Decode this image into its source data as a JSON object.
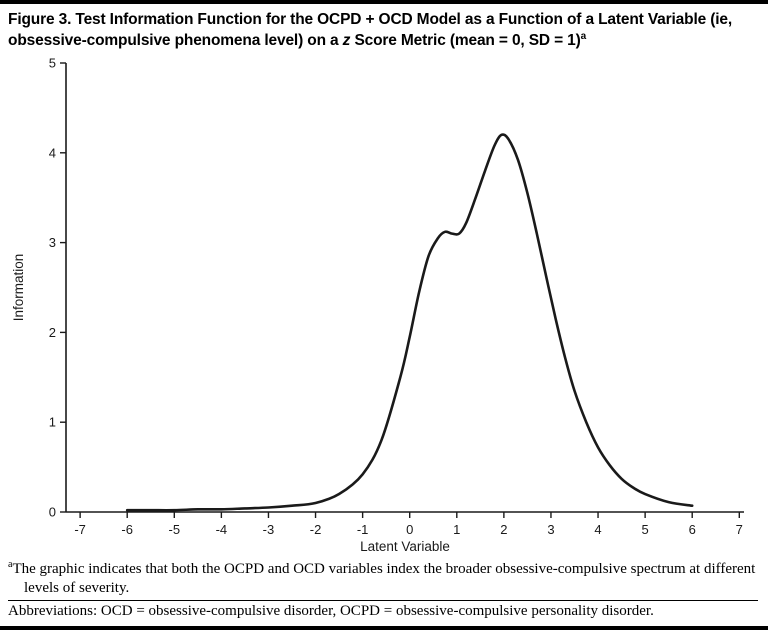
{
  "figure": {
    "title": {
      "part1": "Figure 3. Test Information Function for the OCPD + OCD Model as a Function of a Latent Variable (ie, obsessive-compulsive phenomena level) on a ",
      "italic_term": "z",
      "part2": " Score Metric (mean = 0, SD = 1)",
      "superscript": "a"
    },
    "footnote": {
      "superscript": "a",
      "text": "The graphic indicates that both the OCPD and OCD variables index the broader obsessive-compulsive spectrum at different levels of severity."
    },
    "abbreviations": "Abbreviations: OCD = obsessive-compulsive disorder, OCPD = obsessive-compulsive personality disorder."
  },
  "chart_data": {
    "type": "line",
    "title": "",
    "xlabel": "Latent Variable",
    "ylabel": "Information",
    "xlim": [
      -7.3,
      7.1
    ],
    "ylim": [
      0,
      5
    ],
    "x_ticks": [
      -7,
      -6,
      -5,
      -4,
      -3,
      -2,
      -1,
      0,
      1,
      2,
      3,
      4,
      5,
      6,
      7
    ],
    "y_ticks": [
      0,
      1,
      2,
      3,
      4,
      5
    ],
    "grid": false,
    "legend": "none",
    "line_color": "#1a1a1a",
    "axis_color": "#1a1a1a",
    "series": [
      {
        "name": "Test information function (OCPD + OCD model)",
        "points": [
          [
            -6.0,
            0.02
          ],
          [
            -5.5,
            0.02
          ],
          [
            -5.0,
            0.02
          ],
          [
            -4.5,
            0.03
          ],
          [
            -4.0,
            0.03
          ],
          [
            -3.5,
            0.04
          ],
          [
            -3.0,
            0.05
          ],
          [
            -2.5,
            0.07
          ],
          [
            -2.0,
            0.1
          ],
          [
            -1.5,
            0.2
          ],
          [
            -1.0,
            0.42
          ],
          [
            -0.6,
            0.8
          ],
          [
            -0.2,
            1.5
          ],
          [
            0.0,
            1.95
          ],
          [
            0.2,
            2.45
          ],
          [
            0.4,
            2.85
          ],
          [
            0.6,
            3.05
          ],
          [
            0.75,
            3.12
          ],
          [
            0.9,
            3.1
          ],
          [
            1.05,
            3.1
          ],
          [
            1.2,
            3.22
          ],
          [
            1.4,
            3.5
          ],
          [
            1.6,
            3.8
          ],
          [
            1.8,
            4.08
          ],
          [
            1.95,
            4.2
          ],
          [
            2.1,
            4.15
          ],
          [
            2.3,
            3.92
          ],
          [
            2.5,
            3.55
          ],
          [
            2.7,
            3.1
          ],
          [
            2.9,
            2.62
          ],
          [
            3.1,
            2.15
          ],
          [
            3.3,
            1.72
          ],
          [
            3.5,
            1.35
          ],
          [
            3.75,
            1.0
          ],
          [
            4.0,
            0.72
          ],
          [
            4.25,
            0.52
          ],
          [
            4.5,
            0.37
          ],
          [
            4.75,
            0.27
          ],
          [
            5.0,
            0.2
          ],
          [
            5.5,
            0.11
          ],
          [
            6.0,
            0.07
          ]
        ]
      }
    ]
  }
}
